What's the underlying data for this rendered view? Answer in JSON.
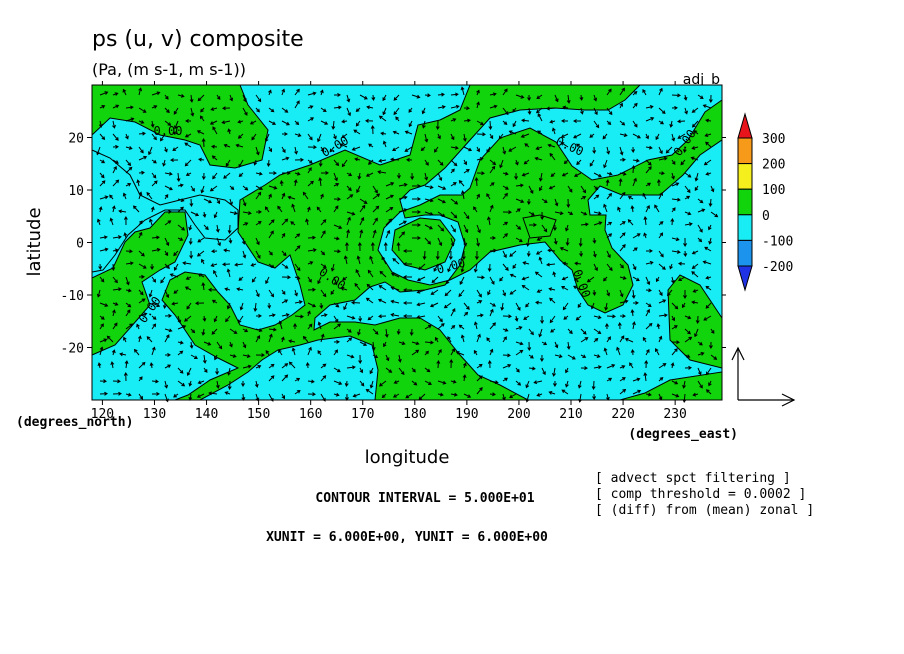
{
  "chart_data": {
    "type": "contour",
    "title": "ps (u, v) composite",
    "subtitle": "(Pa, (m s-1, m s-1))",
    "tag": "adj_b",
    "xlabel": "longitude",
    "ylabel": "latitude",
    "x_unit_label": "(degrees_east)",
    "y_unit_label": "(degrees_north)",
    "xlim": [
      118,
      239
    ],
    "ylim": [
      -30,
      30
    ],
    "x_ticks": [
      120,
      130,
      140,
      150,
      160,
      170,
      180,
      190,
      200,
      210,
      220,
      230
    ],
    "y_ticks": [
      20,
      10,
      0,
      -10,
      -20
    ],
    "contour_label": "0.00",
    "colorbar": {
      "ticks": [
        "300",
        "200",
        "100",
        "0",
        "-100",
        "-200"
      ],
      "colors": [
        "#e8141c",
        "#f79a1a",
        "#f5ef1e",
        "#12d40c",
        "#18edf5",
        "#1c93ec",
        "#1f33e4"
      ]
    },
    "colors": {
      "positive": "#12d40c",
      "negative": "#18edf5"
    },
    "notes": {
      "contour_interval": "CONTOUR INTERVAL = 5.000E+01",
      "units": "XUNIT = 6.000E+00, YUNIT = 6.000E+00",
      "line1": "[ advect spct filtering ]",
      "line2": "[ comp threshold = 0.0002 ]",
      "line3": "[ (diff) from (mean) zonal ]"
    }
  }
}
